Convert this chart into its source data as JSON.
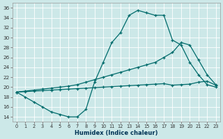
{
  "xlabel": "Humidex (Indice chaleur)",
  "bg_color": "#cce8e8",
  "line_color": "#006b6b",
  "xlim": [
    -0.5,
    23.5
  ],
  "ylim": [
    13.0,
    37.0
  ],
  "xtick_vals": [
    0,
    1,
    2,
    3,
    4,
    5,
    6,
    7,
    8,
    9,
    10,
    11,
    12,
    13,
    14,
    15,
    16,
    17,
    18,
    19,
    20,
    21,
    22,
    23
  ],
  "ytick_vals": [
    14,
    16,
    18,
    20,
    22,
    24,
    26,
    28,
    30,
    32,
    34,
    36
  ],
  "line1_x": [
    0,
    1,
    2,
    3,
    4,
    5,
    6,
    7,
    8,
    9,
    10,
    11,
    12,
    13,
    14,
    15,
    16,
    17,
    18,
    19,
    20,
    21,
    22,
    23
  ],
  "line1_y": [
    19,
    18,
    17,
    16,
    15,
    14.5,
    14,
    14,
    15.5,
    21,
    25,
    29,
    31,
    34.5,
    35.5,
    35,
    34.5,
    34.5,
    29.5,
    28.5,
    25,
    22.5,
    20.5,
    20
  ],
  "line2_x": [
    0,
    1,
    2,
    3,
    4,
    5,
    6,
    7,
    8,
    9,
    10,
    11,
    12,
    13,
    14,
    15,
    16,
    17,
    18,
    19,
    20,
    21,
    22,
    23
  ],
  "line2_y": [
    19,
    19.2,
    19.4,
    19.6,
    19.8,
    20,
    20.2,
    20.5,
    21,
    21.5,
    22,
    22.5,
    23,
    23.5,
    24,
    24.5,
    25,
    26,
    27,
    29,
    28.5,
    25.5,
    22.5,
    20.5
  ],
  "line3_x": [
    0,
    1,
    2,
    3,
    4,
    5,
    6,
    7,
    8,
    9,
    10,
    11,
    12,
    13,
    14,
    15,
    16,
    17,
    18,
    19,
    20,
    21,
    22,
    23
  ],
  "line3_y": [
    19,
    19.1,
    19.2,
    19.3,
    19.4,
    19.5,
    19.6,
    19.7,
    19.8,
    19.9,
    20,
    20.1,
    20.2,
    20.3,
    20.4,
    20.5,
    20.6,
    20.7,
    20.4,
    20.5,
    20.6,
    21,
    21.2,
    20.4
  ]
}
